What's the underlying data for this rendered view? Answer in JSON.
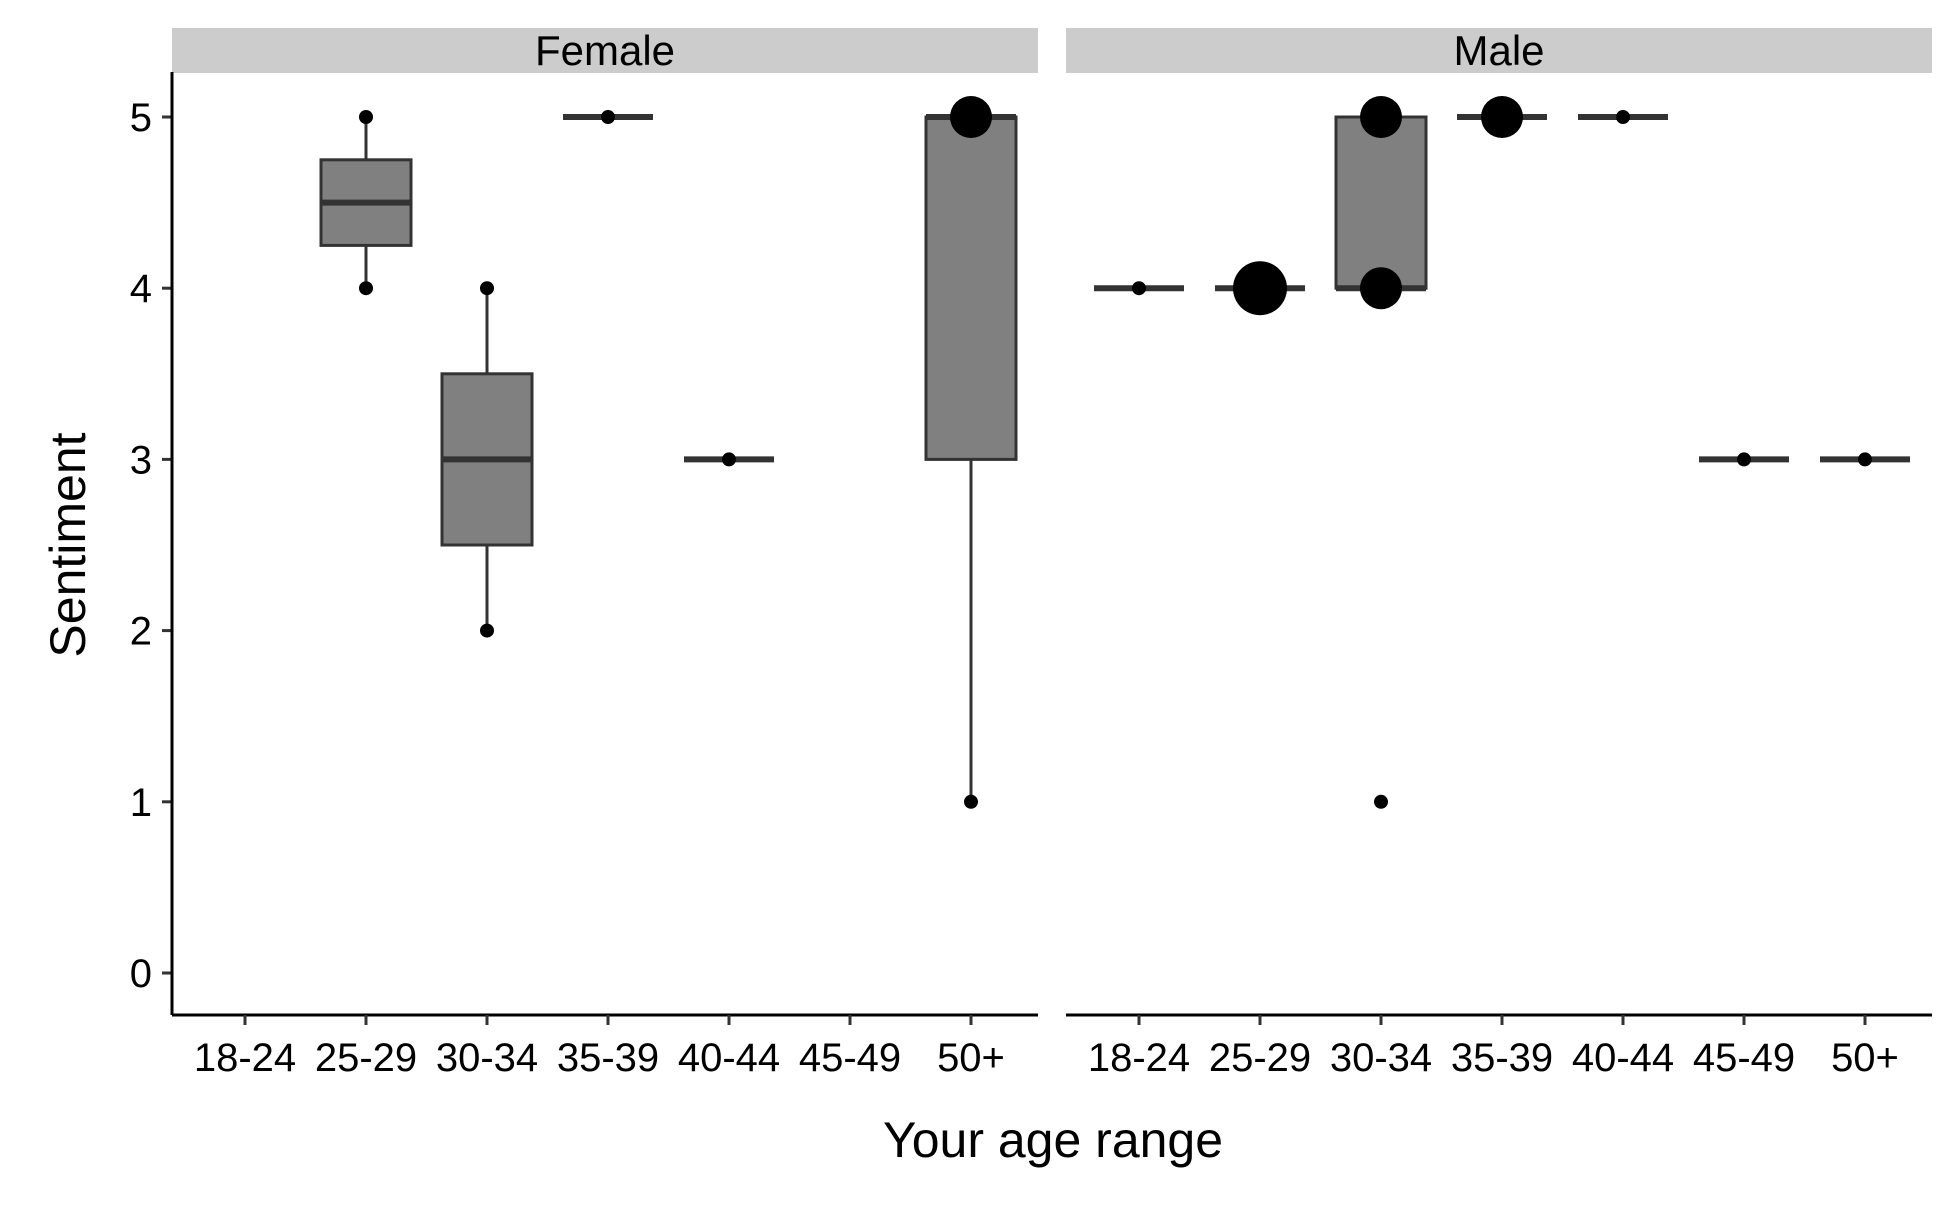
{
  "chart_data": {
    "type": "boxplot",
    "xlabel": "Your age range",
    "ylabel": "Sentiment",
    "ylim": [
      0,
      5
    ],
    "yticks": [
      0,
      1,
      2,
      3,
      4,
      5
    ],
    "categories": [
      "18-24",
      "25-29",
      "30-34",
      "35-39",
      "40-44",
      "45-49",
      "50+"
    ],
    "grid": false,
    "colors": {
      "box_fill": "#808080",
      "box_line": "#333333",
      "strip_fill": "#cccccc",
      "point": "#000000"
    },
    "panels": [
      {
        "name": "Female",
        "boxes": [
          {
            "category": "25-29",
            "lower_whisker": 4,
            "q1": 4.25,
            "median": 4.5,
            "q3": 4.75,
            "upper_whisker": 5
          },
          {
            "category": "30-34",
            "lower_whisker": 2,
            "q1": 2.5,
            "median": 3,
            "q3": 3.5,
            "upper_whisker": 4
          },
          {
            "category": "35-39",
            "lower_whisker": 5,
            "q1": 5,
            "median": 5,
            "q3": 5,
            "upper_whisker": 5
          },
          {
            "category": "40-44",
            "lower_whisker": 3,
            "q1": 3,
            "median": 3,
            "q3": 3,
            "upper_whisker": 3
          },
          {
            "category": "50+",
            "lower_whisker": 1,
            "q1": 3,
            "median": 5,
            "q3": 5,
            "upper_whisker": 5
          }
        ],
        "points": [
          {
            "category": "25-29",
            "y": 5,
            "n": 1
          },
          {
            "category": "25-29",
            "y": 4,
            "n": 1
          },
          {
            "category": "30-34",
            "y": 4,
            "n": 1
          },
          {
            "category": "30-34",
            "y": 2,
            "n": 1
          },
          {
            "category": "35-39",
            "y": 5,
            "n": 1
          },
          {
            "category": "40-44",
            "y": 3,
            "n": 1
          },
          {
            "category": "50+",
            "y": 5,
            "n": 3
          },
          {
            "category": "50+",
            "y": 1,
            "n": 1
          }
        ]
      },
      {
        "name": "Male",
        "boxes": [
          {
            "category": "18-24",
            "lower_whisker": 4,
            "q1": 4,
            "median": 4,
            "q3": 4,
            "upper_whisker": 4
          },
          {
            "category": "25-29",
            "lower_whisker": 4,
            "q1": 4,
            "median": 4,
            "q3": 4,
            "upper_whisker": 4
          },
          {
            "category": "30-34",
            "lower_whisker": 4,
            "q1": 4,
            "median": 4,
            "q3": 5,
            "upper_whisker": 5
          },
          {
            "category": "35-39",
            "lower_whisker": 5,
            "q1": 5,
            "median": 5,
            "q3": 5,
            "upper_whisker": 5
          },
          {
            "category": "40-44",
            "lower_whisker": 5,
            "q1": 5,
            "median": 5,
            "q3": 5,
            "upper_whisker": 5
          },
          {
            "category": "45-49",
            "lower_whisker": 3,
            "q1": 3,
            "median": 3,
            "q3": 3,
            "upper_whisker": 3
          },
          {
            "category": "50+",
            "lower_whisker": 3,
            "q1": 3,
            "median": 3,
            "q3": 3,
            "upper_whisker": 3
          }
        ],
        "points": [
          {
            "category": "18-24",
            "y": 4,
            "n": 1
          },
          {
            "category": "25-29",
            "y": 4,
            "n": 4
          },
          {
            "category": "30-34",
            "y": 5,
            "n": 3
          },
          {
            "category": "30-34",
            "y": 4,
            "n": 3
          },
          {
            "category": "30-34",
            "y": 1,
            "n": 1
          },
          {
            "category": "35-39",
            "y": 5,
            "n": 3
          },
          {
            "category": "40-44",
            "y": 5,
            "n": 1
          },
          {
            "category": "45-49",
            "y": 3,
            "n": 1
          },
          {
            "category": "50+",
            "y": 3,
            "n": 1
          }
        ]
      }
    ]
  }
}
